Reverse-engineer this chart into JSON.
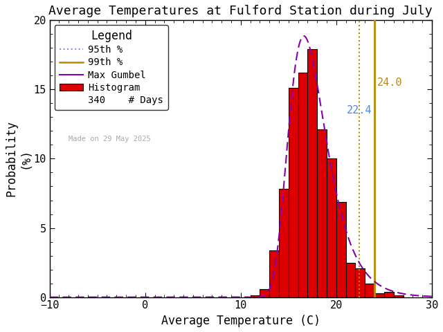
{
  "title": "Average Temperatures at Fulford Station during July",
  "xlabel": "Average Temperature (C)",
  "ylabel1": "Probability",
  "ylabel2": "(%)",
  "xlim": [
    -10,
    30
  ],
  "ylim": [
    0,
    20
  ],
  "xticks": [
    -10,
    0,
    10,
    20,
    30
  ],
  "yticks": [
    0,
    5,
    10,
    15,
    20
  ],
  "bar_lefts": [
    11.0,
    12.0,
    13.0,
    14.0,
    15.0,
    16.0,
    17.0,
    18.0,
    19.0,
    20.0,
    21.0,
    22.0,
    23.0,
    24.0,
    25.0,
    26.0
  ],
  "bar_heights": [
    0.15,
    0.6,
    3.4,
    7.8,
    15.1,
    16.2,
    17.9,
    12.1,
    10.0,
    6.9,
    2.5,
    2.1,
    1.0,
    0.3,
    0.4,
    0.15
  ],
  "bar_width": 1.0,
  "bar_color": "#dd0000",
  "bar_edge_color": "#000000",
  "gumbel_mu": 16.6,
  "gumbel_beta": 1.95,
  "gumbel_color": "#8800aa",
  "pct95_x": 22.4,
  "pct95_color": "#8888ff",
  "pct95_label_color": "#4488ff",
  "pct99_x": 24.0,
  "pct99_color": "#bb8800",
  "n_days": 340,
  "made_on": "Made on 29 May 2025",
  "legend_title": "Legend",
  "bg_color": "#ffffff",
  "plot_bg_color": "#ffffff",
  "title_fontsize": 13,
  "label_fontsize": 12,
  "tick_fontsize": 11,
  "legend_fontsize": 10,
  "pct99_label": "24.0",
  "pct95_label": "22.4"
}
